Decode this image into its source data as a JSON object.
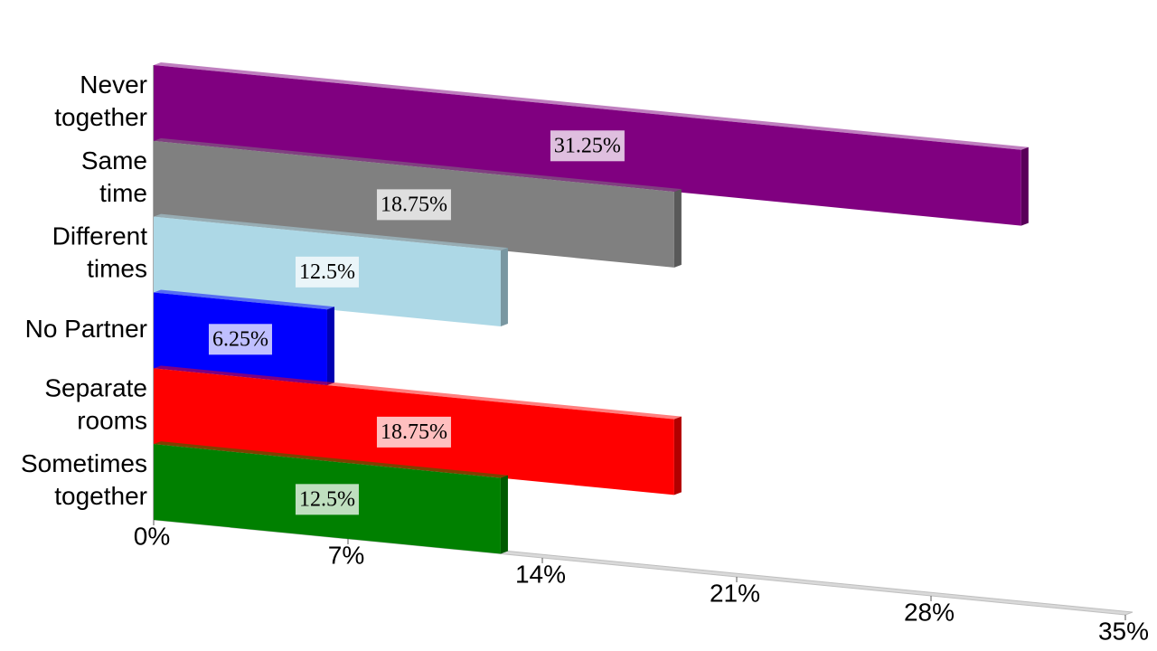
{
  "chart_data": {
    "type": "bar",
    "orientation": "horizontal",
    "categories": [
      "Never together",
      "Same time",
      "Different times",
      "No Partner",
      "Separate rooms",
      "Sometimes together"
    ],
    "values": [
      31.25,
      18.75,
      12.5,
      6.25,
      18.75,
      12.5
    ],
    "value_labels": [
      "31.25%",
      "18.75%",
      "12.5%",
      "6.25%",
      "18.75%",
      "12.5%"
    ],
    "colors": [
      "#800080",
      "#808080",
      "#add8e6",
      "#0000ff",
      "#ff0000",
      "#008000"
    ],
    "xlim": [
      0,
      35
    ],
    "xticks": [
      {
        "value": 0,
        "label": "0%"
      },
      {
        "value": 7,
        "label": "7%"
      },
      {
        "value": 14,
        "label": "14%"
      },
      {
        "value": 21,
        "label": "21%"
      },
      {
        "value": 28,
        "label": "28%"
      },
      {
        "value": 35,
        "label": "35%"
      }
    ]
  }
}
